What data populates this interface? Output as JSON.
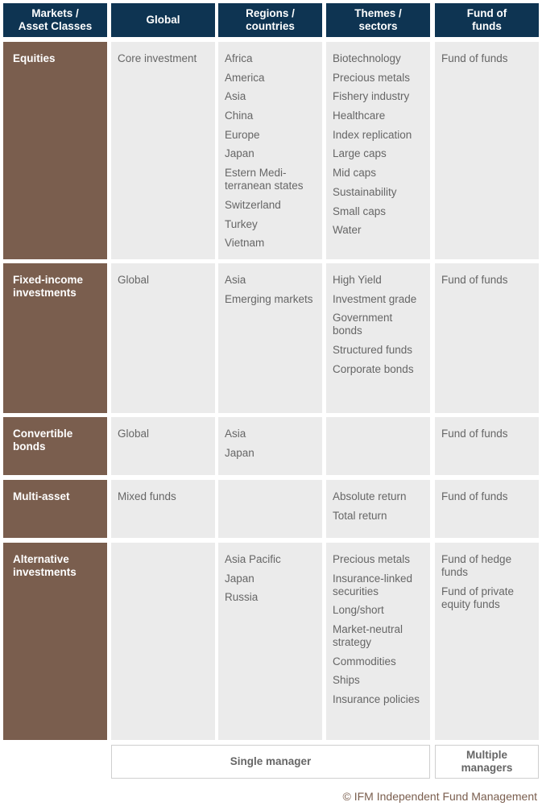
{
  "headers": [
    "Markets /\nAsset Classes",
    "Global",
    "Regions /\ncountries",
    "Themes /\nsectors",
    "Fund of\nfunds"
  ],
  "rows": [
    {
      "label": "Equities",
      "cells": [
        [
          "Core investment"
        ],
        [
          "Africa",
          "America",
          "Asia",
          "China",
          "Europe",
          "Japan",
          "Estern Medi-\nterranean states",
          "Switzerland",
          "Turkey",
          "Vietnam"
        ],
        [
          "Biotechnology",
          "Precious metals",
          "Fishery industry",
          "Healthcare",
          "Index replication",
          "Large caps",
          "Mid caps",
          "Sustainability",
          "Small caps",
          "Water"
        ],
        [
          "Fund of funds"
        ]
      ]
    },
    {
      "label": "Fixed-income\ninvestments",
      "cells": [
        [
          "Global"
        ],
        [
          "Asia",
          "Emerging markets"
        ],
        [
          "High Yield",
          "Investment grade",
          "Government\nbonds",
          "Structured funds",
          "Corporate bonds"
        ],
        [
          "Fund of funds"
        ]
      ]
    },
    {
      "label": "Convertible\nbonds",
      "cells": [
        [
          "Global"
        ],
        [
          "Asia",
          "Japan"
        ],
        [],
        [
          "Fund of funds"
        ]
      ]
    },
    {
      "label": "Multi-asset",
      "cells": [
        [
          "Mixed funds"
        ],
        [],
        [
          "Absolute return",
          "Total return"
        ],
        [
          "Fund of funds"
        ]
      ]
    },
    {
      "label": "Alternative\ninvestments",
      "cells": [
        [],
        [
          "Asia Pacific",
          "Japan",
          "Russia"
        ],
        [
          "Precious metals",
          "Insurance-linked\nsecurities",
          "Long/short",
          "Market-neutral\nstrategy",
          "Commodities",
          "Ships",
          "Insurance policies"
        ],
        [
          "Fund of hedge\nfunds",
          "Fund of private\nequity funds"
        ]
      ]
    }
  ],
  "footer": {
    "single": "Single manager",
    "multiple": "Multiple\nmanagers",
    "copyright": "© IFM Independent Fund Management"
  },
  "colors": {
    "header": "#0e3452",
    "row_label": "#7a5e4e",
    "cell": "#ebebeb"
  }
}
